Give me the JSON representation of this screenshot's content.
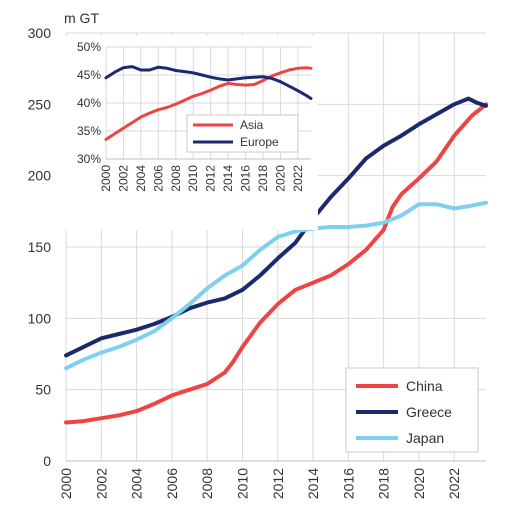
{
  "chart_data": [
    {
      "type": "line",
      "unit_label": "m GT",
      "xlim": [
        2000,
        2023.8
      ],
      "ylim": [
        0,
        300
      ],
      "xticks": [
        "2000",
        "2002",
        "2004",
        "2006",
        "2008",
        "2010",
        "2012",
        "2014",
        "2016",
        "2018",
        "2020",
        "2022"
      ],
      "yticks": [
        "0",
        "50",
        "100",
        "150",
        "200",
        "250",
        "300"
      ],
      "grid": true,
      "legend_position": "bottom-right",
      "series": [
        {
          "name": "China",
          "color": "#ee4444",
          "points": [
            [
              2000,
              27
            ],
            [
              2001,
              28
            ],
            [
              2002,
              30
            ],
            [
              2003,
              32
            ],
            [
              2004,
              35
            ],
            [
              2005,
              40
            ],
            [
              2006,
              46
            ],
            [
              2007,
              50
            ],
            [
              2008,
              54
            ],
            [
              2009,
              62
            ],
            [
              2009.5,
              70
            ],
            [
              2010,
              80
            ],
            [
              2011,
              97
            ],
            [
              2012,
              110
            ],
            [
              2013,
              120
            ],
            [
              2014,
              125
            ],
            [
              2015,
              130
            ],
            [
              2016,
              138
            ],
            [
              2017,
              148
            ],
            [
              2018,
              162
            ],
            [
              2018.5,
              178
            ],
            [
              2019,
              187
            ],
            [
              2020,
              198
            ],
            [
              2021,
              210
            ],
            [
              2022,
              228
            ],
            [
              2023,
              242
            ],
            [
              2023.8,
              250
            ]
          ]
        },
        {
          "name": "Greece",
          "color": "#1a2a6c",
          "points": [
            [
              2000,
              74
            ],
            [
              2001,
              80
            ],
            [
              2002,
              86
            ],
            [
              2003,
              89
            ],
            [
              2004,
              92
            ],
            [
              2005,
              96
            ],
            [
              2006,
              101
            ],
            [
              2007,
              107
            ],
            [
              2008,
              111
            ],
            [
              2009,
              114
            ],
            [
              2010,
              120
            ],
            [
              2011,
              130
            ],
            [
              2012,
              142
            ],
            [
              2013,
              153
            ],
            [
              2014,
              170
            ],
            [
              2015,
              185
            ],
            [
              2016,
              198
            ],
            [
              2017,
              212
            ],
            [
              2018,
              221
            ],
            [
              2019,
              228
            ],
            [
              2020,
              236
            ],
            [
              2021,
              243
            ],
            [
              2022,
              250
            ],
            [
              2022.8,
              254
            ],
            [
              2023.3,
              251
            ],
            [
              2023.8,
              249
            ]
          ]
        },
        {
          "name": "Japan",
          "color": "#7fd0ef",
          "points": [
            [
              2000,
              65
            ],
            [
              2001,
              71
            ],
            [
              2002,
              76
            ],
            [
              2003,
              80
            ],
            [
              2004,
              85
            ],
            [
              2005,
              91
            ],
            [
              2006,
              100
            ],
            [
              2007,
              110
            ],
            [
              2008,
              121
            ],
            [
              2009,
              130
            ],
            [
              2010,
              137
            ],
            [
              2011,
              148
            ],
            [
              2012,
              157
            ],
            [
              2013,
              161
            ],
            [
              2014,
              163
            ],
            [
              2015,
              164
            ],
            [
              2016,
              164
            ],
            [
              2017,
              165
            ],
            [
              2018,
              167
            ],
            [
              2019,
              172
            ],
            [
              2020,
              180
            ],
            [
              2021,
              180
            ],
            [
              2022,
              177
            ],
            [
              2023,
              179
            ],
            [
              2023.8,
              181
            ]
          ]
        }
      ]
    },
    {
      "type": "line",
      "xlim": [
        2000,
        2023.5
      ],
      "ylim": [
        30,
        50
      ],
      "y_unit": "%",
      "xticks": [
        "2000",
        "2002",
        "2004",
        "2006",
        "2008",
        "2010",
        "2012",
        "2014",
        "2016",
        "2018",
        "2020",
        "2022"
      ],
      "yticks": [
        "30%",
        "35%",
        "40%",
        "45%",
        "50%"
      ],
      "grid": true,
      "legend_position": "bottom-right",
      "series": [
        {
          "name": "Asia",
          "color": "#ee4444",
          "points": [
            [
              2000,
              33.5
            ],
            [
              2001,
              34.5
            ],
            [
              2002,
              35.5
            ],
            [
              2003,
              36.5
            ],
            [
              2004,
              37.5
            ],
            [
              2005,
              38.2
            ],
            [
              2006,
              38.8
            ],
            [
              2007,
              39.2
            ],
            [
              2008,
              39.8
            ],
            [
              2009,
              40.5
            ],
            [
              2010,
              41.2
            ],
            [
              2011,
              41.7
            ],
            [
              2012,
              42.3
            ],
            [
              2013,
              43.0
            ],
            [
              2014,
              43.5
            ],
            [
              2015,
              43.3
            ],
            [
              2016,
              43.2
            ],
            [
              2017,
              43.3
            ],
            [
              2018,
              44.0
            ],
            [
              2019,
              44.8
            ],
            [
              2020,
              45.4
            ],
            [
              2021,
              45.9
            ],
            [
              2022,
              46.2
            ],
            [
              2023,
              46.3
            ],
            [
              2023.5,
              46.2
            ]
          ]
        },
        {
          "name": "Europe",
          "color": "#1a2a6c",
          "points": [
            [
              2000,
              44.5
            ],
            [
              2001,
              45.5
            ],
            [
              2002,
              46.3
            ],
            [
              2003,
              46.5
            ],
            [
              2004,
              45.9
            ],
            [
              2005,
              45.9
            ],
            [
              2006,
              46.4
            ],
            [
              2007,
              46.2
            ],
            [
              2008,
              45.8
            ],
            [
              2009,
              45.6
            ],
            [
              2010,
              45.4
            ],
            [
              2011,
              45.0
            ],
            [
              2012,
              44.6
            ],
            [
              2013,
              44.3
            ],
            [
              2014,
              44.1
            ],
            [
              2015,
              44.3
            ],
            [
              2016,
              44.5
            ],
            [
              2017,
              44.6
            ],
            [
              2018,
              44.7
            ],
            [
              2019,
              44.4
            ],
            [
              2020,
              43.8
            ],
            [
              2021,
              43.0
            ],
            [
              2022,
              42.2
            ],
            [
              2023,
              41.3
            ],
            [
              2023.5,
              40.8
            ]
          ]
        }
      ]
    }
  ]
}
